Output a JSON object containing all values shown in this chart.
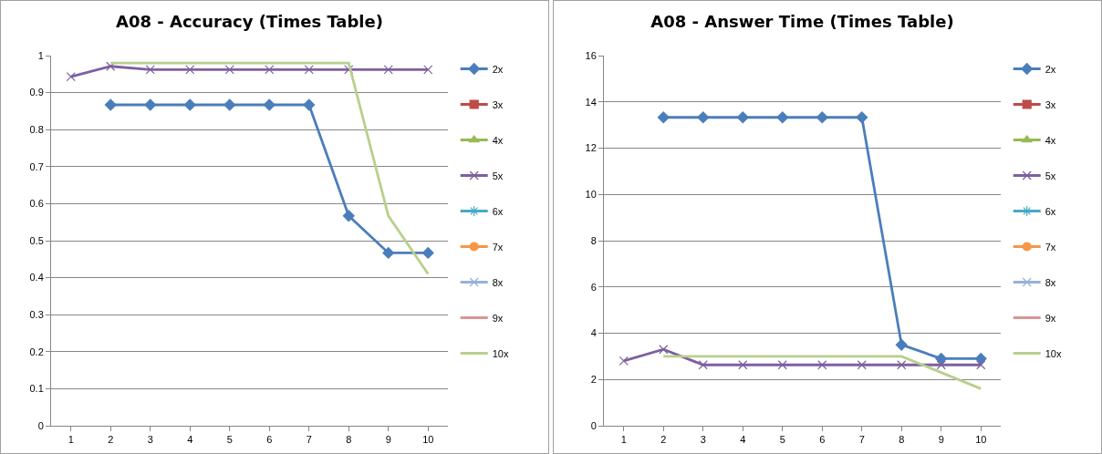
{
  "chart_data": [
    {
      "type": "line",
      "title": "A08 - Accuracy (Times Table)",
      "categories": [
        "1",
        "2",
        "3",
        "4",
        "5",
        "6",
        "7",
        "8",
        "9",
        "10"
      ],
      "ylim": [
        0,
        1
      ],
      "yticks": [
        0,
        0.1,
        0.2,
        0.3,
        0.4,
        0.5,
        0.6,
        0.7,
        0.8,
        0.9,
        1
      ],
      "grid": "y",
      "legend": "right",
      "line_style": "solid",
      "series": [
        {
          "name": "2x",
          "color": "#4a7ebb",
          "marker": "diamond",
          "values": [
            null,
            0.867,
            0.867,
            0.867,
            0.867,
            0.867,
            0.867,
            0.567,
            0.467,
            0.467
          ]
        },
        {
          "name": "3x",
          "color": "#be4b48",
          "marker": "square",
          "values": [
            null,
            null,
            null,
            null,
            null,
            null,
            null,
            null,
            null,
            null
          ]
        },
        {
          "name": "4x",
          "color": "#98b954",
          "marker": "triangle",
          "values": [
            null,
            null,
            null,
            null,
            null,
            null,
            null,
            null,
            null,
            null
          ]
        },
        {
          "name": "5x",
          "color": "#7d60a0",
          "marker": "cross",
          "values": [
            0.943,
            0.971,
            0.962,
            0.962,
            0.962,
            0.962,
            0.962,
            0.962,
            0.962,
            0.962
          ]
        },
        {
          "name": "6x",
          "color": "#46aac5",
          "marker": "star",
          "values": [
            null,
            null,
            null,
            null,
            null,
            null,
            null,
            null,
            null,
            null
          ]
        },
        {
          "name": "7x",
          "color": "#f79646",
          "marker": "circle",
          "values": [
            null,
            null,
            null,
            null,
            null,
            null,
            null,
            null,
            null,
            null
          ]
        },
        {
          "name": "8x",
          "color": "#95b3d7",
          "marker": "cross",
          "values": [
            null,
            null,
            null,
            null,
            null,
            null,
            null,
            null,
            null,
            null
          ]
        },
        {
          "name": "9x",
          "color": "#d99694",
          "marker": "none",
          "values": [
            null,
            null,
            null,
            null,
            null,
            null,
            null,
            null,
            null,
            null
          ]
        },
        {
          "name": "10x",
          "color": "#b8d08c",
          "marker": "none",
          "values": [
            null,
            0.98,
            0.98,
            0.98,
            0.98,
            0.98,
            0.98,
            0.98,
            0.567,
            0.41
          ]
        }
      ]
    },
    {
      "type": "line",
      "title": "A08 - Answer Time (Times Table)",
      "categories": [
        "1",
        "2",
        "3",
        "4",
        "5",
        "6",
        "7",
        "8",
        "9",
        "10"
      ],
      "ylim": [
        0,
        16
      ],
      "yticks": [
        0,
        2,
        4,
        6,
        8,
        10,
        12,
        14,
        16
      ],
      "grid": "y",
      "legend": "right",
      "line_style": "solid",
      "series": [
        {
          "name": "2x",
          "color": "#4a7ebb",
          "marker": "diamond",
          "values": [
            null,
            13.33,
            13.33,
            13.33,
            13.33,
            13.33,
            13.33,
            3.5,
            2.9,
            2.9
          ]
        },
        {
          "name": "3x",
          "color": "#be4b48",
          "marker": "square",
          "values": [
            null,
            null,
            null,
            null,
            null,
            null,
            null,
            null,
            null,
            null
          ]
        },
        {
          "name": "4x",
          "color": "#98b954",
          "marker": "triangle",
          "values": [
            null,
            null,
            null,
            null,
            null,
            null,
            null,
            null,
            null,
            null
          ]
        },
        {
          "name": "5x",
          "color": "#7d60a0",
          "marker": "cross",
          "values": [
            2.8,
            3.3,
            2.63,
            2.63,
            2.63,
            2.63,
            2.63,
            2.63,
            2.63,
            2.63
          ]
        },
        {
          "name": "6x",
          "color": "#46aac5",
          "marker": "star",
          "values": [
            null,
            null,
            null,
            null,
            null,
            null,
            null,
            null,
            null,
            null
          ]
        },
        {
          "name": "7x",
          "color": "#f79646",
          "marker": "circle",
          "values": [
            null,
            null,
            null,
            null,
            null,
            null,
            null,
            null,
            null,
            null
          ]
        },
        {
          "name": "8x",
          "color": "#95b3d7",
          "marker": "cross",
          "values": [
            null,
            null,
            null,
            null,
            null,
            null,
            null,
            null,
            null,
            null
          ]
        },
        {
          "name": "9x",
          "color": "#d99694",
          "marker": "none",
          "values": [
            null,
            null,
            null,
            null,
            null,
            null,
            null,
            null,
            null,
            null
          ]
        },
        {
          "name": "10x",
          "color": "#b8d08c",
          "marker": "none",
          "values": [
            null,
            3.0,
            3.0,
            3.0,
            3.0,
            3.0,
            3.0,
            3.0,
            2.3,
            1.6
          ]
        }
      ]
    }
  ]
}
